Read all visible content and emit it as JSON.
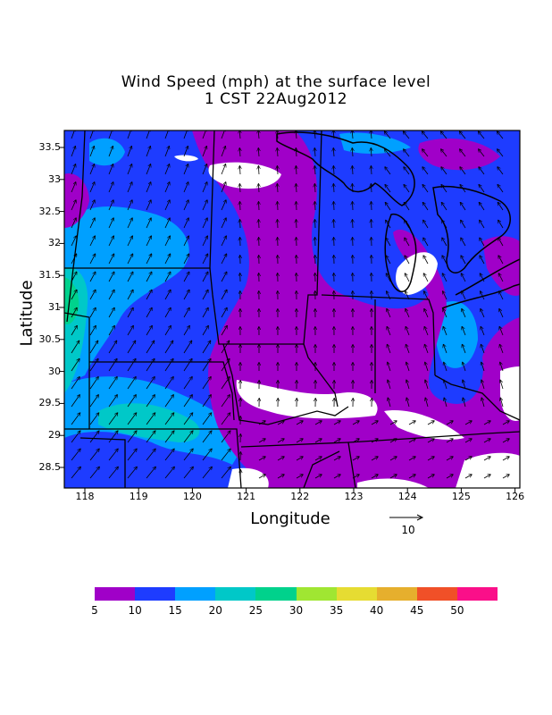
{
  "title_line1": "Wind Speed (mph) at the surface level",
  "title_line2": "1 CST 22Aug2012",
  "yaxis": {
    "label": "Latitude",
    "ticks": [
      "33.5",
      "33",
      "32.5",
      "32",
      "31.5",
      "31",
      "30.5",
      "30",
      "29.5",
      "29",
      "28.5"
    ]
  },
  "xaxis": {
    "label": "Longitude",
    "ticks": [
      "118",
      "119",
      "120",
      "121",
      "122",
      "123",
      "124",
      "125",
      "126"
    ]
  },
  "reference_vector": {
    "label": "10"
  },
  "colorbar": {
    "colors": [
      "#a000c8",
      "#1e3cff",
      "#00a0ff",
      "#00c8c8",
      "#00d28c",
      "#a0e632",
      "#e6dc32",
      "#e6af2d",
      "#f05028",
      "#fa0f89"
    ],
    "labels": [
      "5",
      "10",
      "15",
      "20",
      "25",
      "30",
      "35",
      "40",
      "45",
      "50"
    ]
  }
}
